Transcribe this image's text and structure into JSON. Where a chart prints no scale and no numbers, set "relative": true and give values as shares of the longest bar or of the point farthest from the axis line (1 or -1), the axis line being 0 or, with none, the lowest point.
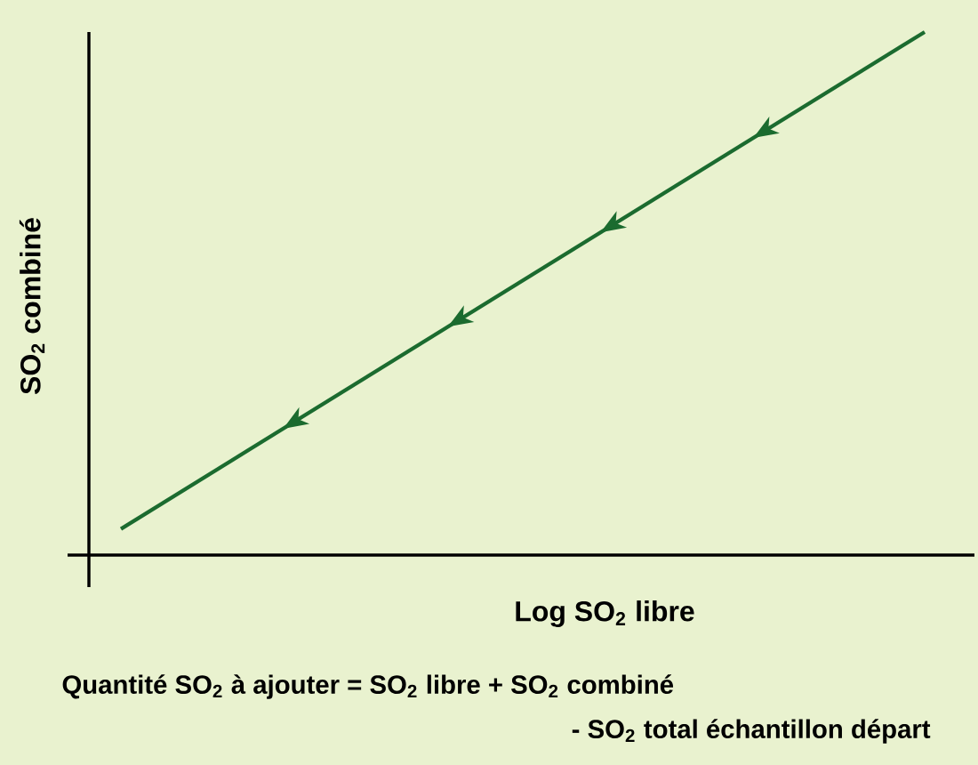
{
  "chart_data": {
    "type": "line",
    "relative": true,
    "categories": [
      null,
      null
    ],
    "series": [
      {
        "color": "#1b6b2f",
        "values": [
          0.05,
          1
        ]
      }
    ],
    "xlabel": "Log SO$_{2}$ libre",
    "ylabel": "SO$_{2}$ combiné",
    "annotations": [
      "Quantité SO$_{2}$ à ajouter = SO$_{2}$ libre + SO$_{2}$ combiné",
      "- SO$_{2}$ total échantillon départ"
    ],
    "marker": "none",
    "line_style": "solid"
  }
}
